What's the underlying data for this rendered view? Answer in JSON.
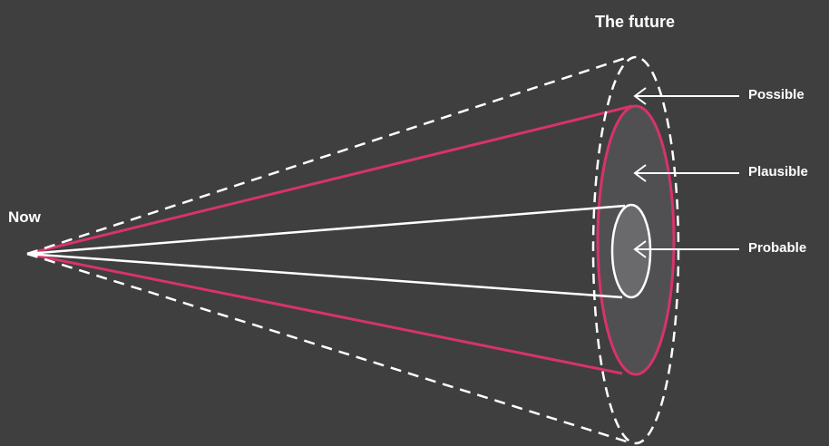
{
  "diagram": {
    "title": "The future",
    "origin_label": "Now",
    "cones": [
      {
        "name": "possible",
        "label": "Possible",
        "style": "dashed",
        "color": "#ffffff"
      },
      {
        "name": "plausible",
        "label": "Plausible",
        "style": "solid",
        "color": "#d8336b"
      },
      {
        "name": "probable",
        "label": "Probable",
        "style": "solid",
        "color": "#ffffff"
      }
    ],
    "colors": {
      "background": "#3f3f3f",
      "plausible_fill": "#505052",
      "probable_fill": "#6a6a6c",
      "accent": "#d8336b",
      "lines": "#ffffff"
    }
  }
}
